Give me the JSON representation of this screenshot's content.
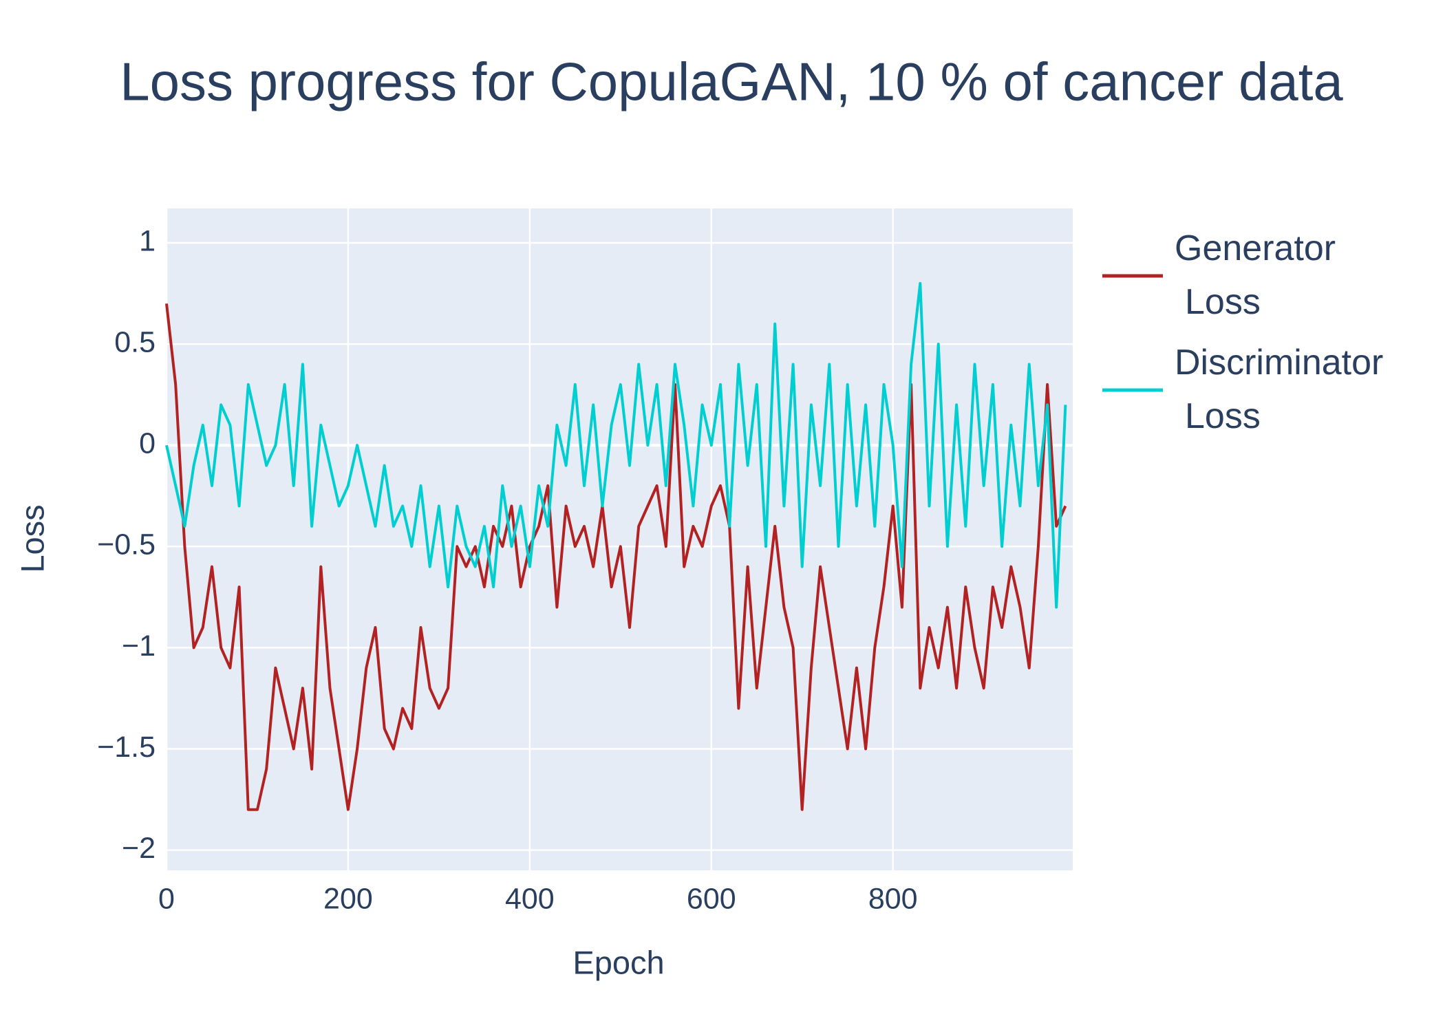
{
  "chart_data": {
    "type": "line",
    "title": "Loss progress for CopulaGAN, 10 % of cancer data",
    "x_label": "Epoch",
    "y_label": "Loss",
    "x": [
      0,
      10,
      20,
      30,
      40,
      50,
      60,
      70,
      80,
      90,
      100,
      110,
      120,
      130,
      140,
      150,
      160,
      170,
      180,
      190,
      200,
      210,
      220,
      230,
      240,
      250,
      260,
      270,
      280,
      290,
      300,
      310,
      320,
      330,
      340,
      350,
      360,
      370,
      380,
      390,
      400,
      410,
      420,
      430,
      440,
      450,
      460,
      470,
      480,
      490,
      500,
      510,
      520,
      530,
      540,
      550,
      560,
      570,
      580,
      590,
      600,
      610,
      620,
      630,
      640,
      650,
      660,
      670,
      680,
      690,
      700,
      710,
      720,
      730,
      740,
      750,
      760,
      770,
      780,
      790,
      800,
      810,
      820,
      830,
      840,
      850,
      860,
      870,
      880,
      890,
      900,
      910,
      920,
      930,
      940,
      950,
      960,
      970,
      980,
      990
    ],
    "series": [
      {
        "name": "Generator Loss",
        "color": "#b22222",
        "values": [
          0.7,
          0.3,
          -0.5,
          -1.0,
          -0.9,
          -0.6,
          -1.0,
          -1.1,
          -0.7,
          -1.8,
          -1.8,
          -1.6,
          -1.1,
          -1.3,
          -1.5,
          -1.2,
          -1.6,
          -0.6,
          -1.2,
          -1.5,
          -1.8,
          -1.5,
          -1.1,
          -0.9,
          -1.4,
          -1.5,
          -1.3,
          -1.4,
          -0.9,
          -1.2,
          -1.3,
          -1.2,
          -0.5,
          -0.6,
          -0.5,
          -0.7,
          -0.4,
          -0.5,
          -0.3,
          -0.7,
          -0.5,
          -0.4,
          -0.2,
          -0.8,
          -0.3,
          -0.5,
          -0.4,
          -0.6,
          -0.3,
          -0.7,
          -0.5,
          -0.9,
          -0.4,
          -0.3,
          -0.2,
          -0.5,
          0.3,
          -0.6,
          -0.4,
          -0.5,
          -0.3,
          -0.2,
          -0.4,
          -1.3,
          -0.6,
          -1.2,
          -0.8,
          -0.4,
          -0.8,
          -1.0,
          -1.8,
          -1.1,
          -0.6,
          -0.9,
          -1.2,
          -1.5,
          -1.1,
          -1.5,
          -1.0,
          -0.7,
          -0.3,
          -0.8,
          0.3,
          -1.2,
          -0.9,
          -1.1,
          -0.8,
          -1.2,
          -0.7,
          -1.0,
          -1.2,
          -0.7,
          -0.9,
          -0.6,
          -0.8,
          -1.1,
          -0.5,
          0.3,
          -0.4,
          -0.3
        ]
      },
      {
        "name": "Discriminator Loss",
        "color": "#00ced1",
        "values": [
          0,
          -0.2,
          -0.4,
          -0.1,
          0.1,
          -0.2,
          0.2,
          0.1,
          -0.3,
          0.3,
          0.1,
          -0.1,
          0.0,
          0.3,
          -0.2,
          0.4,
          -0.4,
          0.1,
          -0.1,
          -0.3,
          -0.2,
          0.0,
          -0.2,
          -0.4,
          -0.1,
          -0.4,
          -0.3,
          -0.5,
          -0.2,
          -0.6,
          -0.3,
          -0.7,
          -0.3,
          -0.5,
          -0.6,
          -0.4,
          -0.7,
          -0.2,
          -0.5,
          -0.3,
          -0.6,
          -0.2,
          -0.4,
          0.1,
          -0.1,
          0.3,
          -0.2,
          0.2,
          -0.3,
          0.1,
          0.3,
          -0.1,
          0.4,
          0.0,
          0.3,
          -0.2,
          0.4,
          0.1,
          -0.3,
          0.2,
          0.0,
          0.3,
          -0.4,
          0.4,
          -0.1,
          0.3,
          -0.5,
          0.6,
          -0.3,
          0.4,
          -0.6,
          0.2,
          -0.2,
          0.4,
          -0.5,
          0.3,
          -0.3,
          0.2,
          -0.4,
          0.3,
          0.0,
          -0.6,
          0.4,
          0.8,
          -0.3,
          0.5,
          -0.5,
          0.2,
          -0.4,
          0.4,
          -0.2,
          0.3,
          -0.5,
          0.1,
          -0.3,
          0.4,
          -0.2,
          0.2,
          -0.8,
          0.2
        ]
      }
    ],
    "xlim": [
      0,
      998
    ],
    "ylim": [
      -2.1,
      1.17
    ],
    "xticks": [
      0,
      200,
      400,
      600,
      800
    ],
    "yticks": [
      {
        "value": -2,
        "label": "−2"
      },
      {
        "value": -1.5,
        "label": "−1.5"
      },
      {
        "value": -1,
        "label": "−1"
      },
      {
        "value": -0.5,
        "label": "−0.5"
      },
      0,
      0.5,
      1
    ],
    "grid": true
  }
}
